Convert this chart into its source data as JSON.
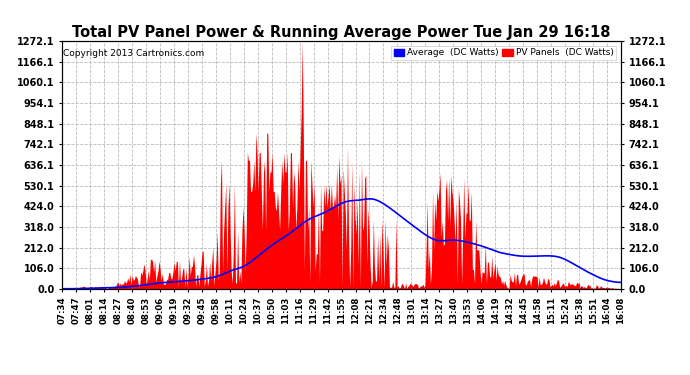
{
  "title": "Total PV Panel Power & Running Average Power Tue Jan 29 16:18",
  "copyright": "Copyright 2013 Cartronics.com",
  "legend_labels": [
    "Average  (DC Watts)",
    "PV Panels  (DC Watts)"
  ],
  "ymin": 0.0,
  "ymax": 1272.1,
  "yticks": [
    0.0,
    106.0,
    212.0,
    318.0,
    424.0,
    530.1,
    636.1,
    742.1,
    848.1,
    954.1,
    1060.1,
    1166.1,
    1272.1
  ],
  "bg_color": "#ffffff",
  "grid_color": "#bbbbbb",
  "pv_color": "#ff0000",
  "avg_color": "#0000ff",
  "time_labels": [
    "07:34",
    "07:47",
    "08:01",
    "08:14",
    "08:27",
    "08:40",
    "08:53",
    "09:06",
    "09:19",
    "09:32",
    "09:45",
    "09:58",
    "10:11",
    "10:24",
    "10:37",
    "10:50",
    "11:03",
    "11:16",
    "11:29",
    "11:42",
    "11:55",
    "12:08",
    "12:21",
    "12:34",
    "12:48",
    "13:01",
    "13:14",
    "13:27",
    "13:40",
    "13:53",
    "14:06",
    "14:19",
    "14:32",
    "14:45",
    "14:58",
    "15:11",
    "15:24",
    "15:38",
    "15:51",
    "16:04",
    "16:08"
  ]
}
